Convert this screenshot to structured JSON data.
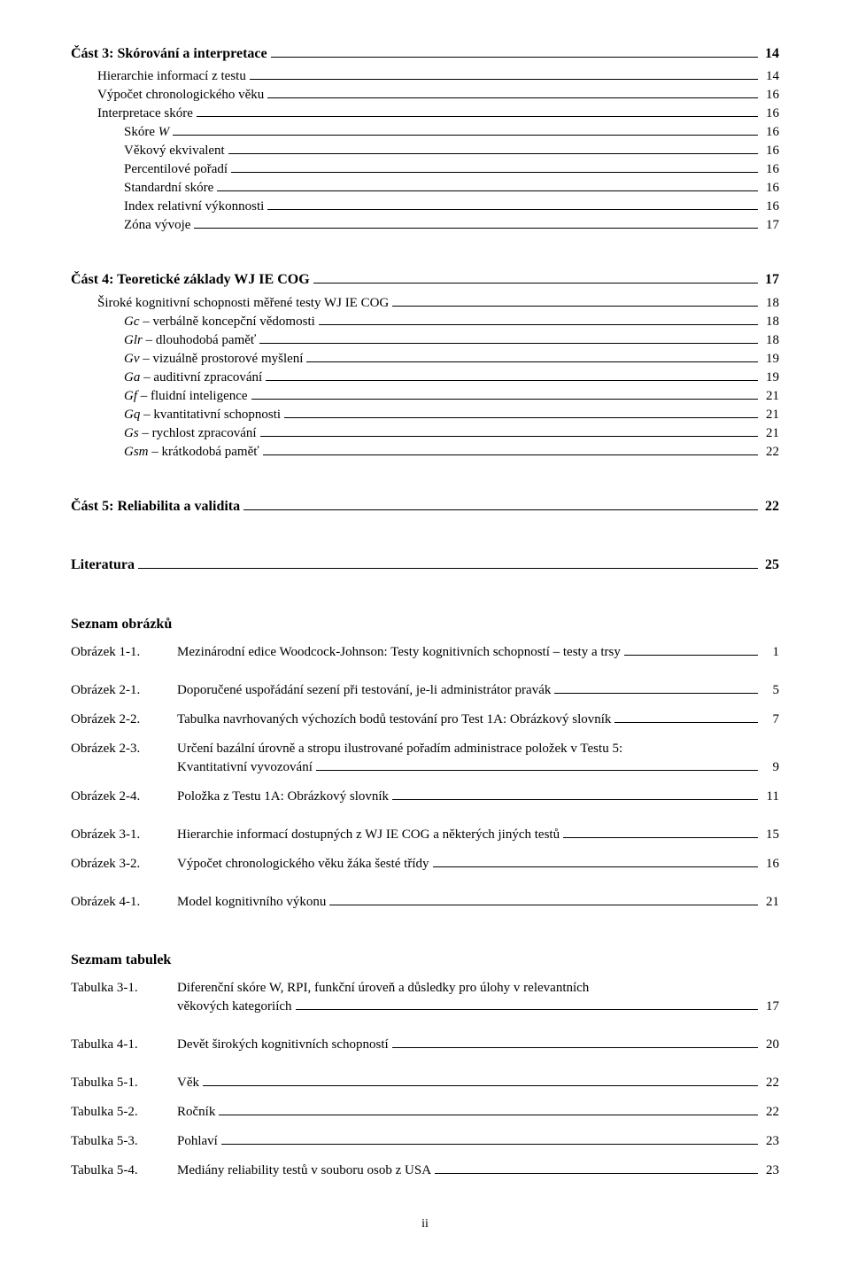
{
  "toc": {
    "part3": {
      "heading": "Část 3: Skórování a interpretace",
      "page": "14",
      "items": [
        {
          "label": "Hierarchie informací z testu",
          "page": "14",
          "indent": 1
        },
        {
          "label": "Výpočet chronologického věku",
          "page": "16",
          "indent": 1
        },
        {
          "label": "Interpretace skóre",
          "page": "16",
          "indent": 1
        },
        {
          "label_html": "Skóre <i>W</i>",
          "page": "16",
          "indent": 2
        },
        {
          "label": "Věkový ekvivalent",
          "page": "16",
          "indent": 2
        },
        {
          "label": "Percentilové pořadí",
          "page": "16",
          "indent": 2
        },
        {
          "label": "Standardní skóre",
          "page": "16",
          "indent": 2
        },
        {
          "label": "Index relativní výkonnosti",
          "page": "16",
          "indent": 2
        },
        {
          "label": "Zóna vývoje",
          "page": "17",
          "indent": 2
        }
      ]
    },
    "part4": {
      "heading": "Část 4: Teoretické základy WJ IE COG",
      "page": "17",
      "items": [
        {
          "label": "Široké kognitivní schopnosti měřené testy WJ IE COG",
          "page": "18",
          "indent": 1
        },
        {
          "label_prefix_i": "Gc",
          "label_rest": " – verbálně koncepční vědomosti",
          "page": "18",
          "indent": 2
        },
        {
          "label_prefix_i": "Glr",
          "label_rest": " – dlouhodobá paměť",
          "page": "18",
          "indent": 2
        },
        {
          "label_prefix_i": "Gv",
          "label_rest": " – vizuálně prostorové myšlení",
          "page": "19",
          "indent": 2
        },
        {
          "label_prefix_i": "Ga",
          "label_rest": " – auditivní zpracování",
          "page": "19",
          "indent": 2
        },
        {
          "label_prefix_i": "Gf",
          "label_rest": " – fluidní inteligence",
          "page": "21",
          "indent": 2
        },
        {
          "label_prefix_i": "Gq",
          "label_rest": " – kvantitativní schopnosti",
          "page": "21",
          "indent": 2
        },
        {
          "label_prefix_i": "Gs",
          "label_rest": " – rychlost zpracování",
          "page": "21",
          "indent": 2
        },
        {
          "label_prefix_i": "Gsm",
          "label_rest": " – krátkodobá paměť",
          "page": "22",
          "indent": 2
        }
      ]
    },
    "part5": {
      "heading": "Část 5: Reliabilita a validita",
      "page": "22"
    },
    "literatura": {
      "heading": "Literatura",
      "page": "25"
    }
  },
  "figures": {
    "heading": "Seznam obrázků",
    "items": [
      {
        "key": "Obrázek 1-1.",
        "text": "Mezinárodní edice Woodcock-Johnson: Testy kognitivních schopností – testy a trsy",
        "page": "1",
        "gap_after": true
      },
      {
        "key": "Obrázek 2-1.",
        "text": "Doporučené uspořádání sezení při testování, je-li administrátor pravák",
        "page": "5"
      },
      {
        "key": "Obrázek 2-2.",
        "text": "Tabulka navrhovaných výchozích bodů testování pro Test 1A: Obrázkový slovník",
        "page": "7"
      },
      {
        "key": "Obrázek 2-3.",
        "text1": "Určení bazální úrovně a stropu ilustrované pořadím administrace položek v Testu 5:",
        "text2": "Kvantitativní vyvozování",
        "page": "9",
        "twoLine": true
      },
      {
        "key": "Obrázek 2-4.",
        "text": "Položka z Testu 1A: Obrázkový slovník",
        "page": "11",
        "gap_after": true
      },
      {
        "key": "Obrázek 3-1.",
        "text": "Hierarchie informací dostupných z WJ IE COG a některých jiných testů",
        "page": "15"
      },
      {
        "key": "Obrázek 3-2.",
        "text": "Výpočet chronologického věku žáka šesté třídy",
        "page": "16",
        "gap_after": true
      },
      {
        "key": "Obrázek 4-1.",
        "text": "Model kognitivního výkonu",
        "page": "21"
      }
    ]
  },
  "tables": {
    "heading": "Sezmam tabulek",
    "items": [
      {
        "key": "Tabulka 3-1.",
        "text1": "Diferenční skóre W, RPI, funkční úroveň a důsledky pro úlohy v relevantních",
        "text2": "věkových kategoriích",
        "page": "17",
        "twoLine": true,
        "gap_after": true
      },
      {
        "key": "Tabulka 4-1.",
        "text": "Devět širokých kognitivních schopností",
        "page": "20",
        "gap_after": true
      },
      {
        "key": "Tabulka 5-1.",
        "text": "Věk",
        "page": "22"
      },
      {
        "key": "Tabulka 5-2.",
        "text": "Ročník",
        "page": "22"
      },
      {
        "key": "Tabulka 5-3.",
        "text": "Pohlaví",
        "page": "23"
      },
      {
        "key": "Tabulka 5-4.",
        "text": "Mediány reliability testů v souboru osob z USA",
        "page": "23"
      }
    ]
  },
  "pageNumber": "ii"
}
